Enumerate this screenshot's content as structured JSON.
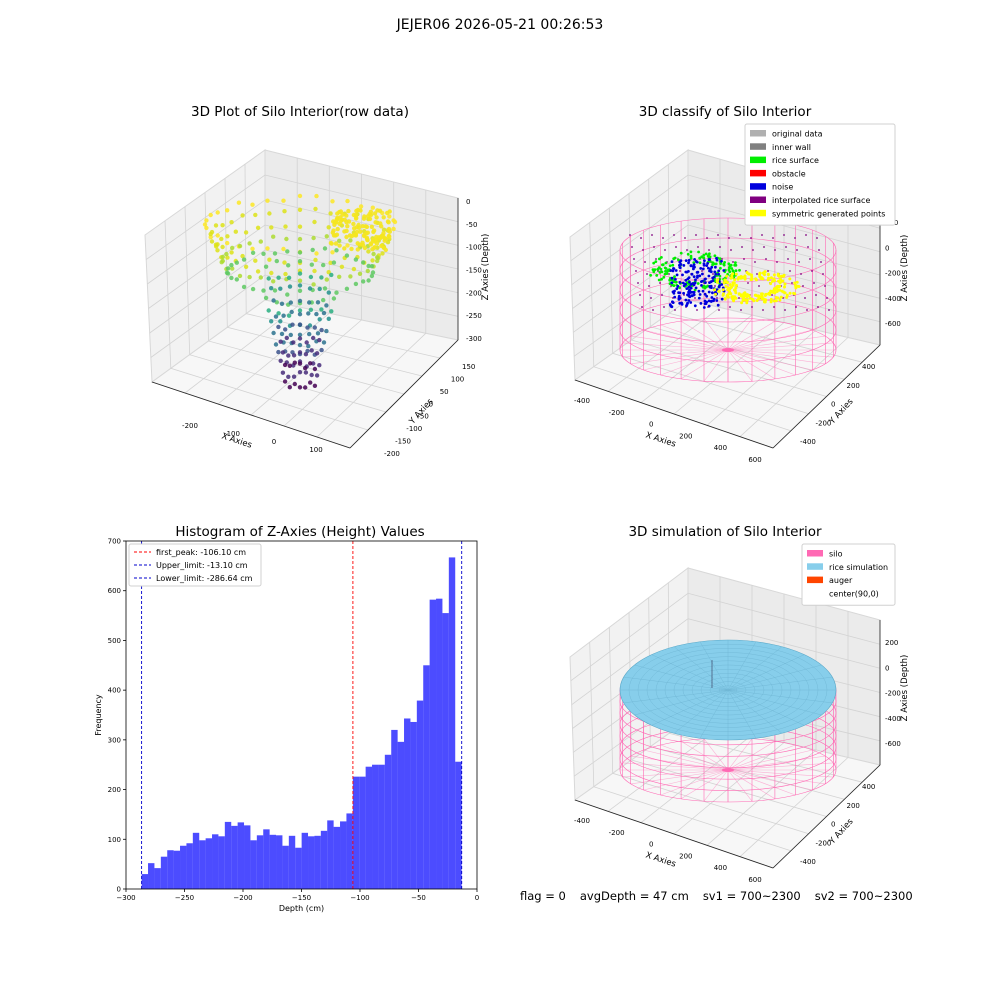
{
  "suptitle": "JEJER06 2026-05-21 00:26:53",
  "panels": {
    "raw3d": {
      "title": "3D Plot of Silo Interior(row data)",
      "xlabel": "X Axies",
      "ylabel": "Y Axies",
      "zlabel": "Z Axies (Depth)",
      "xticks": [
        "-200",
        "-100",
        "0",
        "100"
      ],
      "yticks": [
        "150",
        "100",
        "50",
        "0",
        "-50",
        "-100",
        "-150",
        "-200"
      ],
      "zticks": [
        "0",
        "-50",
        "-100",
        "-150",
        "-200",
        "-250",
        "-300"
      ]
    },
    "classify3d": {
      "title": "3D classify of Silo Interior",
      "xlabel": "X Axies",
      "ylabel": "Y Axies",
      "zlabel": "Z Axies (Depth)",
      "xticks": [
        "-400",
        "-200",
        "0",
        "200",
        "400",
        "600"
      ],
      "yticks": [
        "400",
        "200",
        "0",
        "-200",
        "-400"
      ],
      "zticks": [
        "200",
        "0",
        "-200",
        "-400",
        "-600"
      ],
      "legend": [
        {
          "label": "original data",
          "color": "#b0b0b0"
        },
        {
          "label": "inner wall",
          "color": "#808080"
        },
        {
          "label": "rice surface",
          "color": "#00ee00"
        },
        {
          "label": "obstacle",
          "color": "#ff0000"
        },
        {
          "label": "noise",
          "color": "#0000dd"
        },
        {
          "label": "interpolated rice surface",
          "color": "#800080"
        },
        {
          "label": "symmetric generated points",
          "color": "#ffff00"
        }
      ]
    },
    "sim3d": {
      "title": "3D simulation of Silo Interior",
      "xlabel": "X Axies",
      "ylabel": "Y Axies",
      "zlabel": "Z Axies (Depth)",
      "xticks": [
        "-400",
        "-200",
        "0",
        "200",
        "400",
        "600"
      ],
      "yticks": [
        "400",
        "200",
        "0",
        "-200",
        "-400"
      ],
      "zticks": [
        "200",
        "0",
        "-200",
        "-400",
        "-600"
      ],
      "legend": [
        {
          "label": "silo",
          "color": "#ff69b4"
        },
        {
          "label": "rice simulation",
          "color": "#87ceeb"
        },
        {
          "label": "auger",
          "color": "#ff4500"
        },
        {
          "label": "center(90,0)",
          "color": ""
        }
      ]
    }
  },
  "chart_data": {
    "type": "bar",
    "title": "Histogram of Z-Axies (Height) Values",
    "xlabel": "Depth (cm)",
    "ylabel": "Frequency",
    "xlim": [
      -300,
      0
    ],
    "ylim": [
      0,
      700
    ],
    "xticks": [
      -300,
      -250,
      -200,
      -150,
      -100,
      -50,
      0
    ],
    "yticks": [
      0,
      100,
      200,
      300,
      400,
      500,
      600,
      700
    ],
    "bar_color": "#0000ff",
    "bin_start": -286.64,
    "bin_width": 5.47,
    "values": [
      30,
      52,
      42,
      65,
      78,
      77,
      87,
      92,
      113,
      98,
      102,
      110,
      106,
      135,
      127,
      134,
      128,
      98,
      108,
      120,
      109,
      108,
      87,
      107,
      83,
      113,
      106,
      107,
      117,
      138,
      125,
      136,
      152,
      226,
      226,
      246,
      250,
      250,
      270,
      320,
      296,
      343,
      336,
      379,
      450,
      582,
      584,
      555,
      667,
      256
    ],
    "vlines": [
      {
        "label": "first_peak: -106.10 cm",
        "x": -106.1,
        "color": "#ff0000"
      },
      {
        "label": "Upper_limit: -13.10 cm",
        "x": -13.1,
        "color": "#0000cc"
      },
      {
        "label": "Lower_limit: -286.64 cm",
        "x": -286.64,
        "color": "#0000cc"
      }
    ],
    "legend_position": "top-left"
  },
  "status": {
    "flag": "flag = 0",
    "avg_depth": "avgDepth = 47 cm",
    "sv1": "sv1 = 700~2300",
    "sv2": "sv2 = 700~2300"
  }
}
